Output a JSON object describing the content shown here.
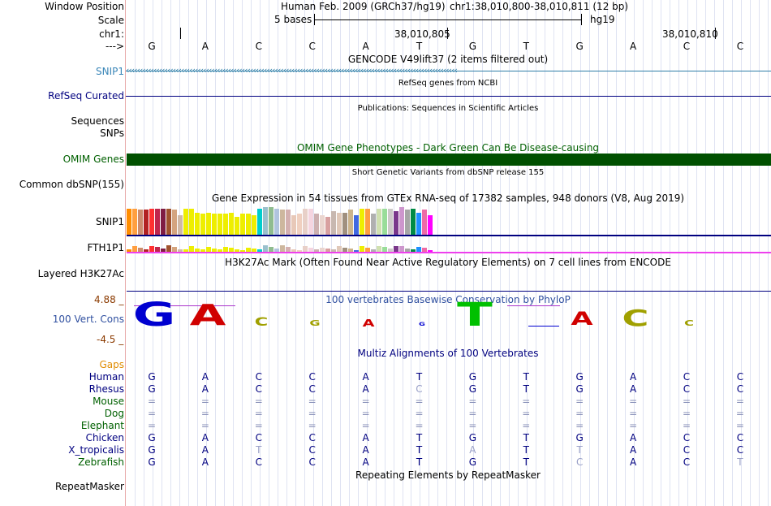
{
  "header": {
    "window_position_label": "Window Position",
    "assembly": "Human Feb. 2009 (GRCh37/hg19)",
    "position": "chr1:38,010,800-38,010,811 (12 bp)",
    "scale_label": "Scale",
    "scale_bases": "5 bases",
    "scale_db": "hg19",
    "chrom_label": "chr1:",
    "coord1": "38,010,805",
    "coord2": "38,010,810",
    "strand_label": "--->"
  },
  "bases": [
    "G",
    "A",
    "C",
    "C",
    "A",
    "T",
    "G",
    "T",
    "G",
    "A",
    "C",
    "C"
  ],
  "tracks": {
    "gencode_title": "GENCODE V49lift37 (2 items filtered out)",
    "snip1_label": "SNIP1",
    "refseq_title": "RefSeq genes from NCBI",
    "refseq_label": "RefSeq Curated",
    "pubs_title": "Publications: Sequences in Scientific Articles",
    "sequences_label": "Sequences",
    "snps_label": "SNPs",
    "omim_title": "OMIM Gene Phenotypes - Dark Green Can Be Disease-causing",
    "omim_label": "OMIM Genes",
    "dbsnp_title": "Short Genetic Variants from dbSNP release 155",
    "dbsnp_label": "Common dbSNP(155)",
    "gtex_title": "Gene Expression in 54 tissues from GTEx RNA-seq of 17382 samples, 948 donors (V8, Aug 2019)",
    "gtex_snip1_label": "SNIP1",
    "gtex_fth1p1_label": "FTH1P1",
    "h3k27ac_title": "H3K27Ac Mark (Often Found Near Active Regulatory Elements) on 7 cell lines from ENCODE",
    "h3k27ac_label": "Layered H3K27Ac",
    "cons_title": "100 vertebrates Basewise Conservation by PhyloP",
    "cons_label": "100 Vert. Cons",
    "cons_max": "4.88 _",
    "cons_min": "-4.5 _",
    "multiz_title": "Multiz Alignments of 100 Vertebrates",
    "gaps_label": "Gaps",
    "rmsk_title": "Repeating Elements by RepeatMasker",
    "rmsk_label": "RepeatMasker"
  },
  "conservation_logo": [
    {
      "base": "G",
      "score": 1.0,
      "color": "#0000d0"
    },
    {
      "base": "A",
      "score": 0.9,
      "color": "#d00000"
    },
    {
      "base": "C",
      "score": 0.35,
      "color": "#a0a000"
    },
    {
      "base": "G",
      "score": 0.25,
      "color": "#a0a000"
    },
    {
      "base": "A",
      "score": 0.3,
      "color": "#d00000"
    },
    {
      "base": "G",
      "score": 0.15,
      "color": "#0000d0"
    },
    {
      "base": "T",
      "score": 1.0,
      "color": "#00c000"
    },
    {
      "base": "",
      "score": 0.05,
      "color": "#0000d0"
    },
    {
      "base": "A",
      "score": 0.55,
      "color": "#d00000"
    },
    {
      "base": "C",
      "score": 0.7,
      "color": "#a0a000"
    },
    {
      "base": "C",
      "score": 0.25,
      "color": "#a0a000"
    }
  ],
  "alignment": [
    {
      "species": "Human",
      "color": "#000080",
      "bases": [
        "G",
        "A",
        "C",
        "C",
        "A",
        "T",
        "G",
        "T",
        "G",
        "A",
        "C",
        "C"
      ]
    },
    {
      "species": "Rhesus",
      "color": "#000080",
      "bases": [
        "G",
        "A",
        "C",
        "C",
        "A",
        "C",
        "G",
        "T",
        "G",
        "A",
        "C",
        "C"
      ]
    },
    {
      "species": "Mouse",
      "color": "#006000",
      "bases": [
        "=",
        "=",
        "=",
        "=",
        "=",
        "=",
        "=",
        "=",
        "=",
        "=",
        "=",
        "="
      ]
    },
    {
      "species": "Dog",
      "color": "#006000",
      "bases": [
        "=",
        "=",
        "=",
        "=",
        "=",
        "=",
        "=",
        "=",
        "=",
        "=",
        "=",
        "="
      ]
    },
    {
      "species": "Elephant",
      "color": "#006000",
      "bases": [
        "=",
        "=",
        "=",
        "=",
        "=",
        "=",
        "=",
        "=",
        "=",
        "=",
        "=",
        "="
      ]
    },
    {
      "species": "Chicken",
      "color": "#000080",
      "bases": [
        "G",
        "A",
        "C",
        "C",
        "A",
        "T",
        "G",
        "T",
        "G",
        "A",
        "C",
        "C"
      ]
    },
    {
      "species": "X_tropicalis",
      "color": "#000080",
      "bases": [
        "G",
        "A",
        "T",
        "C",
        "A",
        "T",
        "A",
        "T",
        "T",
        "A",
        "C",
        "C"
      ]
    },
    {
      "species": "Zebrafish",
      "color": "#006000",
      "bases": [
        "G",
        "A",
        "C",
        "C",
        "A",
        "T",
        "G",
        "T",
        "C",
        "A",
        "C",
        "T"
      ]
    }
  ],
  "alignment_faded": [
    [
      0,
      0,
      0,
      0,
      0,
      0,
      0,
      0,
      0,
      0,
      0,
      0
    ],
    [
      0,
      0,
      0,
      0,
      0,
      1,
      0,
      0,
      0,
      0,
      0,
      0
    ],
    [
      0,
      0,
      0,
      0,
      0,
      0,
      0,
      0,
      0,
      0,
      0,
      0
    ],
    [
      0,
      0,
      0,
      0,
      0,
      0,
      0,
      0,
      0,
      0,
      0,
      0
    ],
    [
      0,
      0,
      0,
      0,
      0,
      0,
      0,
      0,
      0,
      0,
      0,
      0
    ],
    [
      0,
      0,
      0,
      0,
      0,
      0,
      0,
      0,
      0,
      0,
      0,
      0
    ],
    [
      0,
      0,
      1,
      0,
      0,
      0,
      1,
      0,
      1,
      0,
      0,
      0
    ],
    [
      0,
      0,
      0,
      0,
      0,
      0,
      0,
      0,
      1,
      0,
      0,
      1
    ]
  ],
  "gtex_snip1_bars": [
    {
      "value": 0.95,
      "color": "#ff8c00"
    },
    {
      "value": 0.95,
      "color": "#ff9f40"
    },
    {
      "value": 0.9,
      "color": "#cd8c6e"
    },
    {
      "value": 0.9,
      "color": "#b22222"
    },
    {
      "value": 0.95,
      "color": "#ff3030"
    },
    {
      "value": 0.95,
      "color": "#c0254c"
    },
    {
      "value": 0.95,
      "color": "#7f1d43"
    },
    {
      "value": 0.95,
      "color": "#a0522d"
    },
    {
      "value": 0.9,
      "color": "#d4a47f"
    },
    {
      "value": 0.7,
      "color": "#cfb8a6"
    },
    {
      "value": 0.95,
      "color": "#eeee00"
    },
    {
      "value": 0.95,
      "color": "#eeee00"
    },
    {
      "value": 0.8,
      "color": "#eeee00"
    },
    {
      "value": 0.75,
      "color": "#eeee00"
    },
    {
      "value": 0.8,
      "color": "#eeee00"
    },
    {
      "value": 0.75,
      "color": "#eeee00"
    },
    {
      "value": 0.75,
      "color": "#eeee00"
    },
    {
      "value": 0.75,
      "color": "#eeee00"
    },
    {
      "value": 0.8,
      "color": "#eeee00"
    },
    {
      "value": 0.65,
      "color": "#eeee00"
    },
    {
      "value": 0.75,
      "color": "#eeee00"
    },
    {
      "value": 0.75,
      "color": "#eeee00"
    },
    {
      "value": 0.7,
      "color": "#eeee00"
    },
    {
      "value": 0.95,
      "color": "#00cdcd"
    },
    {
      "value": 1.0,
      "color": "#9ac0cd"
    },
    {
      "value": 1.0,
      "color": "#8fbc8f"
    },
    {
      "value": 0.95,
      "color": "#b0c4de"
    },
    {
      "value": 0.9,
      "color": "#cdb79e"
    },
    {
      "value": 0.9,
      "color": "#d4b0b0"
    },
    {
      "value": 0.7,
      "color": "#e8c8b8"
    },
    {
      "value": 0.75,
      "color": "#f0d0c0"
    },
    {
      "value": 0.95,
      "color": "#e8d0c8"
    },
    {
      "value": 0.95,
      "color": "#f5d5e0"
    },
    {
      "value": 0.75,
      "color": "#cdb0b0"
    },
    {
      "value": 0.7,
      "color": "#ead5cf"
    },
    {
      "value": 0.65,
      "color": "#d8a0a0"
    },
    {
      "value": 0.85,
      "color": "#c8b8b0"
    },
    {
      "value": 0.8,
      "color": "#e0c8b8"
    },
    {
      "value": 0.8,
      "color": "#a0907f"
    },
    {
      "value": 0.9,
      "color": "#ccb48c"
    },
    {
      "value": 0.7,
      "color": "#4169e1"
    },
    {
      "value": 0.95,
      "color": "#eeee00"
    },
    {
      "value": 0.95,
      "color": "#ff9f40"
    },
    {
      "value": 0.75,
      "color": "#b0b0b0"
    },
    {
      "value": 0.95,
      "color": "#d0e0b0"
    },
    {
      "value": 0.95,
      "color": "#99dd99"
    },
    {
      "value": 0.95,
      "color": "#cdc9c9"
    },
    {
      "value": 0.85,
      "color": "#7a378b"
    },
    {
      "value": 1.0,
      "color": "#cd96cd"
    },
    {
      "value": 0.9,
      "color": "#a6a6a6"
    },
    {
      "value": 0.95,
      "color": "#008b45"
    },
    {
      "value": 0.8,
      "color": "#1e90ff"
    },
    {
      "value": 0.9,
      "color": "#ee6aa7"
    },
    {
      "value": 0.7,
      "color": "#ff00ff"
    }
  ]
}
